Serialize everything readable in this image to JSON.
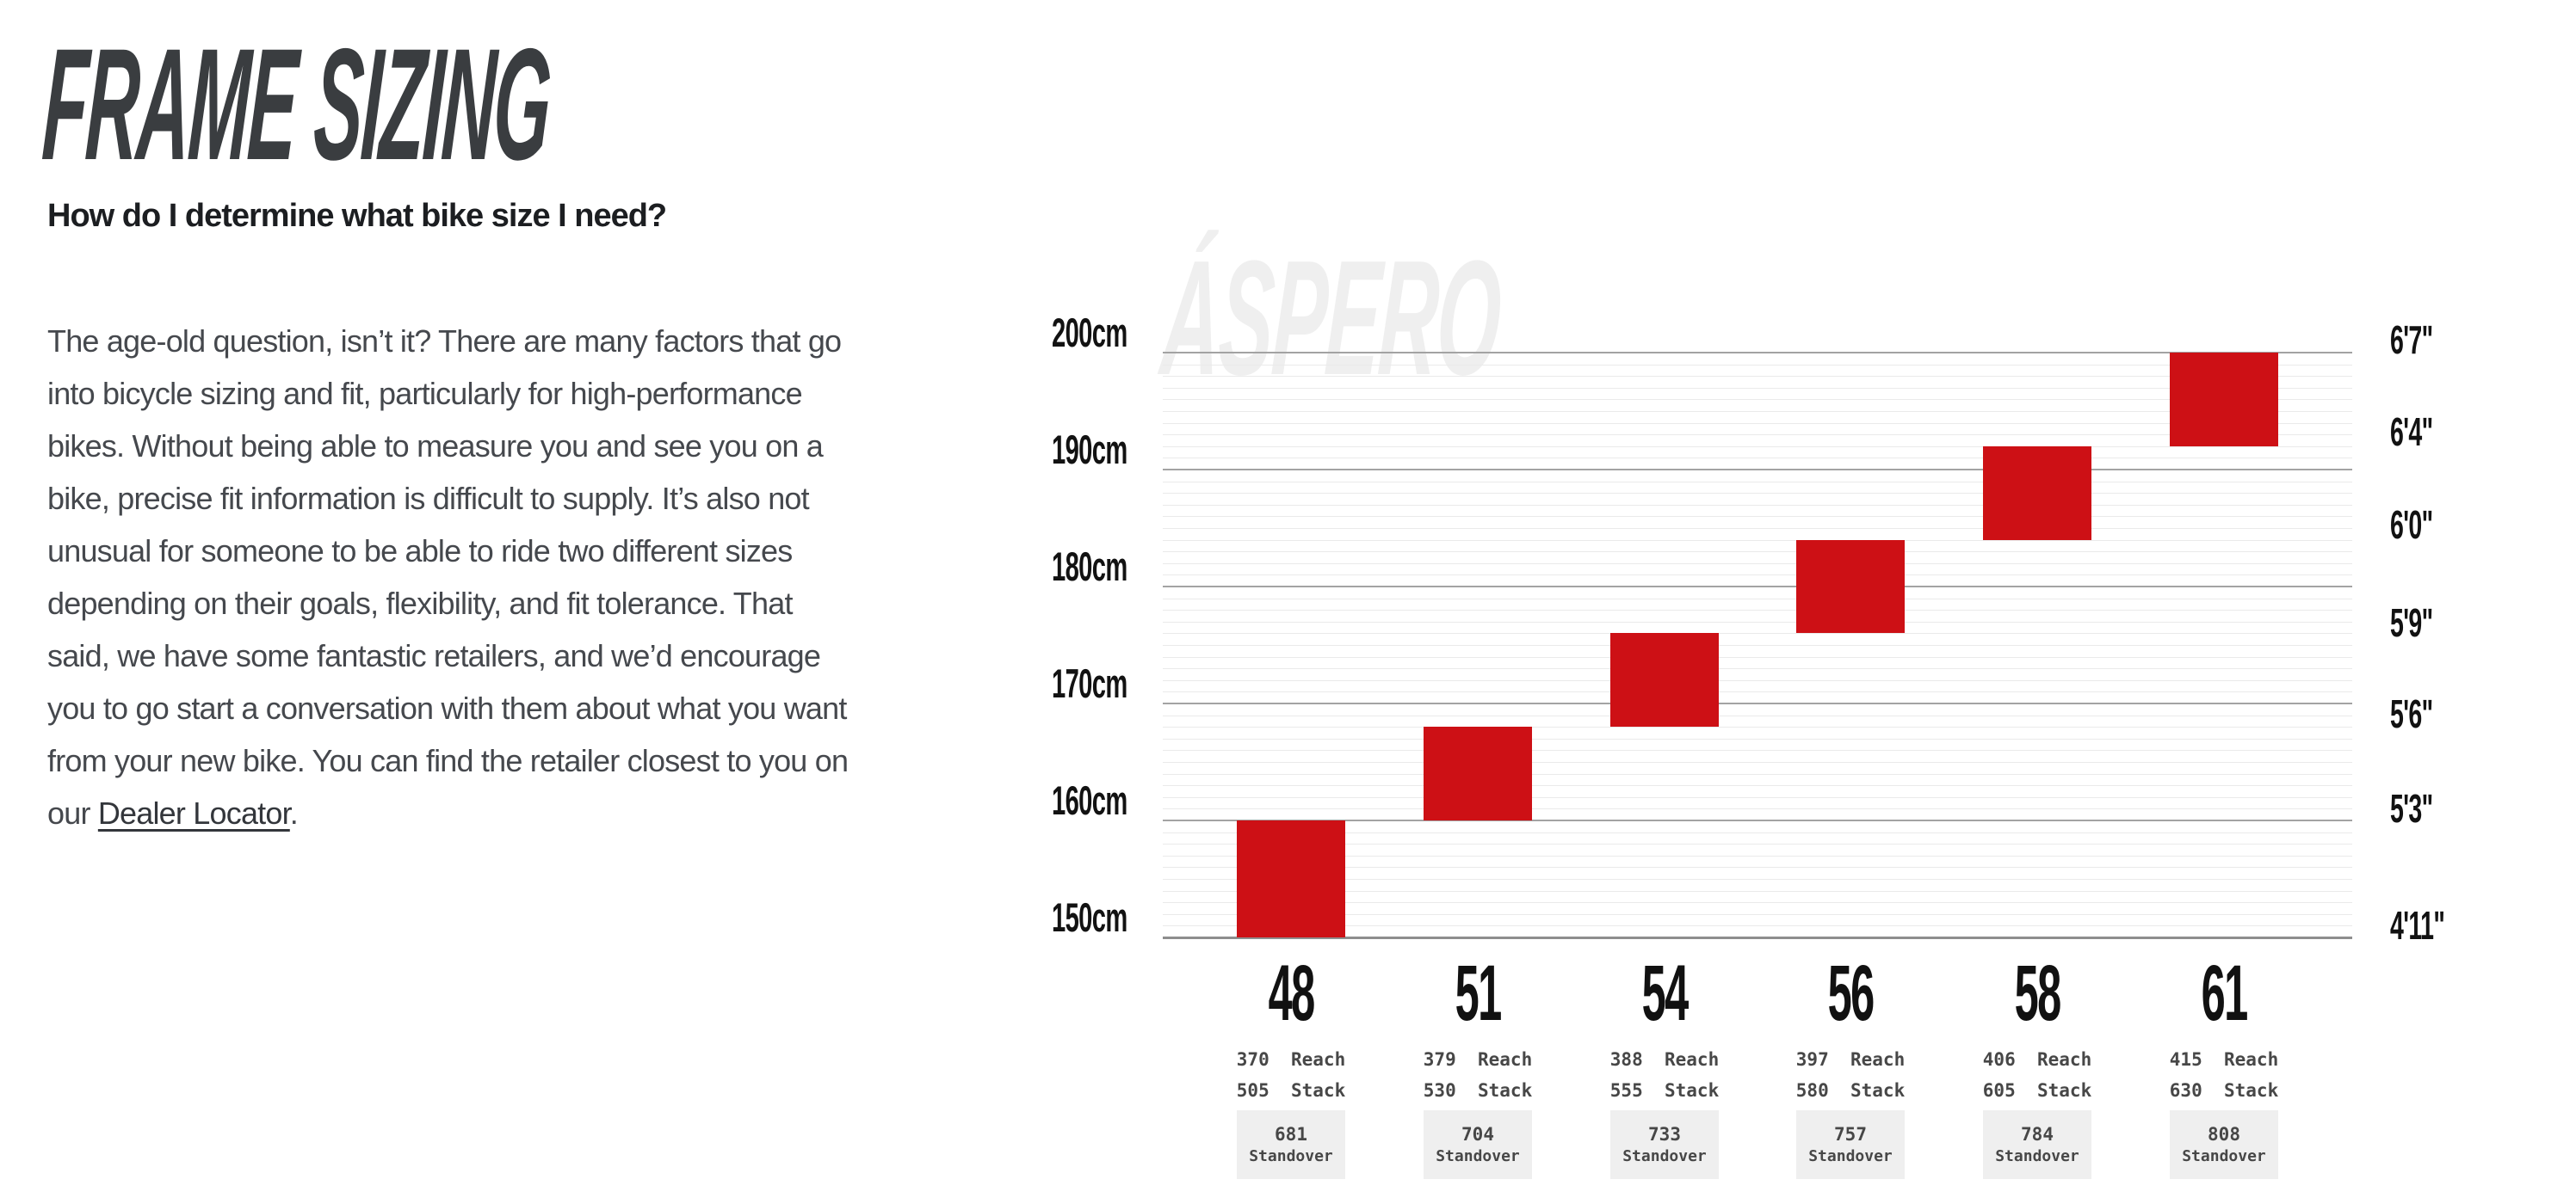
{
  "header": {
    "title": "FRAME SIZING",
    "question": "How do I determine what bike size I need?"
  },
  "intro": {
    "before": "The age-old question, isn’t it? There are many factors that go into bicycle sizing and fit, particularly for high-performance bikes. Without being able to measure you and see you on a bike, precise fit information is difficult to supply. It’s also not unusual for someone to be able to ride two different sizes depending on their goals, flexibility, and fit tolerance. That said, we have some fantastic retailers, and we’d encourage you to go start a conversation with them about what you want from your new bike. You can find the retailer closest to you on our ",
    "link_label": "Dealer Locator",
    "after": "."
  },
  "chart_data": {
    "type": "bar",
    "variant": "rider-height-range-blocks",
    "watermark": "ÁSPERO",
    "grid": "on",
    "legend": "none",
    "bar_color": "#cd1015",
    "left_axis": {
      "unit": "cm",
      "min": 150,
      "max": 200,
      "major_tick_step": 10,
      "minor_tick_step": 1,
      "tick_labels": [
        "200cm",
        "190cm",
        "180cm",
        "170cm",
        "160cm",
        "150cm"
      ],
      "tick_values": [
        200,
        190,
        180,
        170,
        160,
        150
      ]
    },
    "right_axis": {
      "unit": "ft-in",
      "tick_labels": [
        "6'7\"",
        "6'4\"",
        "6'0\"",
        "5'9\"",
        "5'6\"",
        "5'3\"",
        "4'11\""
      ],
      "label_height_cm": [
        201.1,
        193.2,
        185.3,
        176.9,
        169.1,
        161.0,
        151.0
      ]
    },
    "categories": [
      "48",
      "51",
      "54",
      "56",
      "58",
      "61"
    ],
    "unit_labels": {
      "reach": "Reach",
      "stack": "Stack",
      "standover": "Standover"
    },
    "series": [
      {
        "size": "48",
        "height_range_cm": [
          150,
          160
        ],
        "reach": "370",
        "stack": "505",
        "standover": "681"
      },
      {
        "size": "51",
        "height_range_cm": [
          160,
          168
        ],
        "reach": "379",
        "stack": "530",
        "standover": "704"
      },
      {
        "size": "54",
        "height_range_cm": [
          168,
          176
        ],
        "reach": "388",
        "stack": "555",
        "standover": "733"
      },
      {
        "size": "56",
        "height_range_cm": [
          176,
          184
        ],
        "reach": "397",
        "stack": "580",
        "standover": "757"
      },
      {
        "size": "58",
        "height_range_cm": [
          184,
          192
        ],
        "reach": "406",
        "stack": "605",
        "standover": "784"
      },
      {
        "size": "61",
        "height_range_cm": [
          192,
          200
        ],
        "reach": "415",
        "stack": "630",
        "standover": "808"
      }
    ]
  }
}
